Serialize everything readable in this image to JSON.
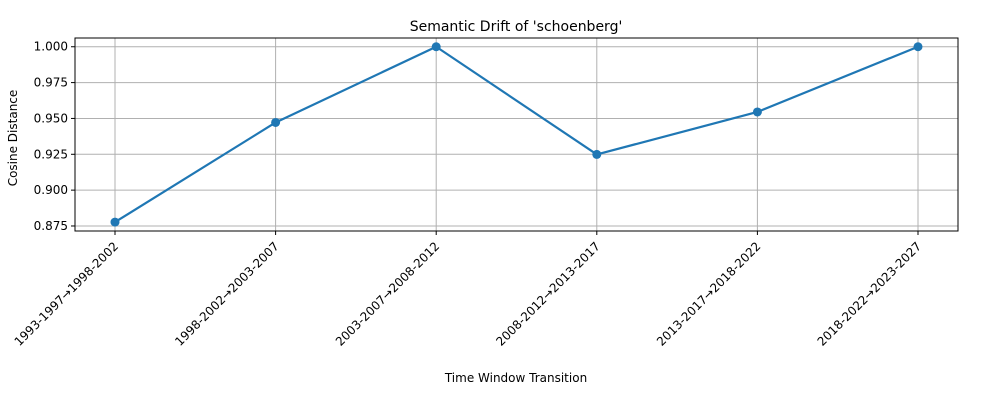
{
  "chart_data": {
    "type": "line",
    "title": "Semantic Drift of 'schoenberg'",
    "xlabel": "Time Window Transition",
    "ylabel": "Cosine Distance",
    "categories": [
      "1993-1997→1998-2002",
      "1998-2002→2003-2007",
      "2003-2007→2008-2012",
      "2008-2012→2013-2017",
      "2013-2017→2018-2022",
      "2018-2022→2023-2027"
    ],
    "series": [
      {
        "values": [
          0.8777,
          0.9472,
          1.0,
          0.9249,
          0.9545,
          1.0
        ],
        "color": "#1f77b4",
        "marker": "circle"
      }
    ],
    "yticks": [
      "0.875",
      "0.900",
      "0.925",
      "0.950",
      "0.975",
      "1.000"
    ],
    "ylim": [
      0.8715,
      1.0061
    ],
    "grid": true,
    "x_tick_rotation": 45
  }
}
